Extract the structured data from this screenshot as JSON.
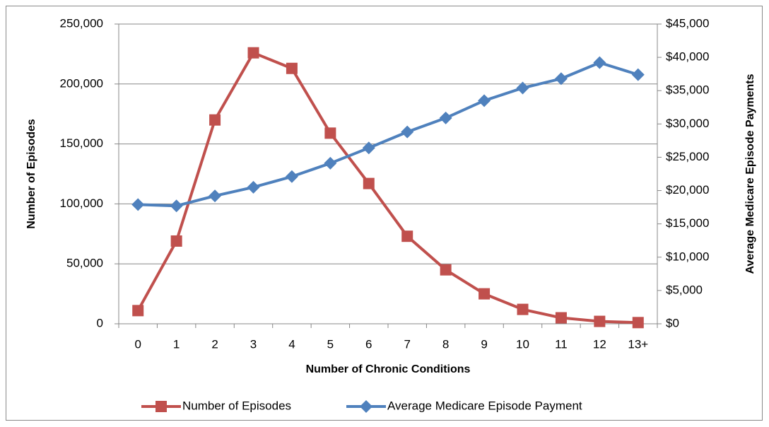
{
  "chart_data": {
    "type": "line",
    "x_label": "Number of Chronic Conditions",
    "y_label": "Number of Episodes",
    "y2_label": "Average Medicare  Episode Payments",
    "categories": [
      "0",
      "1",
      "2",
      "3",
      "4",
      "5",
      "6",
      "7",
      "8",
      "9",
      "10",
      "11",
      "12",
      "13+"
    ],
    "series": [
      {
        "name": "Number of Episodes",
        "color": "#c0504d",
        "marker": "square",
        "axis": "y",
        "values": [
          11000,
          69000,
          170000,
          226000,
          213000,
          159000,
          117000,
          73000,
          45000,
          25000,
          12000,
          5000,
          2000,
          1000
        ]
      },
      {
        "name": "Average Medicare Episode Payment",
        "color": "#4f81bd",
        "marker": "diamond",
        "axis": "y2",
        "values": [
          17900,
          17700,
          19200,
          20500,
          22100,
          24100,
          26400,
          28800,
          30900,
          33500,
          35400,
          36800,
          39200,
          37400
        ]
      }
    ],
    "ylim": [
      0,
      250000
    ],
    "yticks": [
      0,
      {
        "value": 50000,
        "label": "50,000"
      },
      {
        "value": 100000,
        "label": "100,000"
      },
      {
        "value": 150000,
        "label": "150,000"
      },
      {
        "value": 200000,
        "label": "200,000"
      },
      {
        "value": 250000,
        "label": "250,000"
      }
    ],
    "y2lim": [
      0,
      45000
    ],
    "y2ticks": [
      {
        "value": 0,
        "label": "$0"
      },
      {
        "value": 5000,
        "label": "$5,000"
      },
      {
        "value": 10000,
        "label": "$10,000"
      },
      {
        "value": 15000,
        "label": "$15,000"
      },
      {
        "value": 20000,
        "label": "$20,000"
      },
      {
        "value": 25000,
        "label": "$25,000"
      },
      {
        "value": 30000,
        "label": "$30,000"
      },
      {
        "value": 35000,
        "label": "$35,000"
      },
      {
        "value": 40000,
        "label": "$40,000"
      },
      {
        "value": 45000,
        "label": "$45,000"
      }
    ],
    "grid": true,
    "legend": "bottom"
  }
}
